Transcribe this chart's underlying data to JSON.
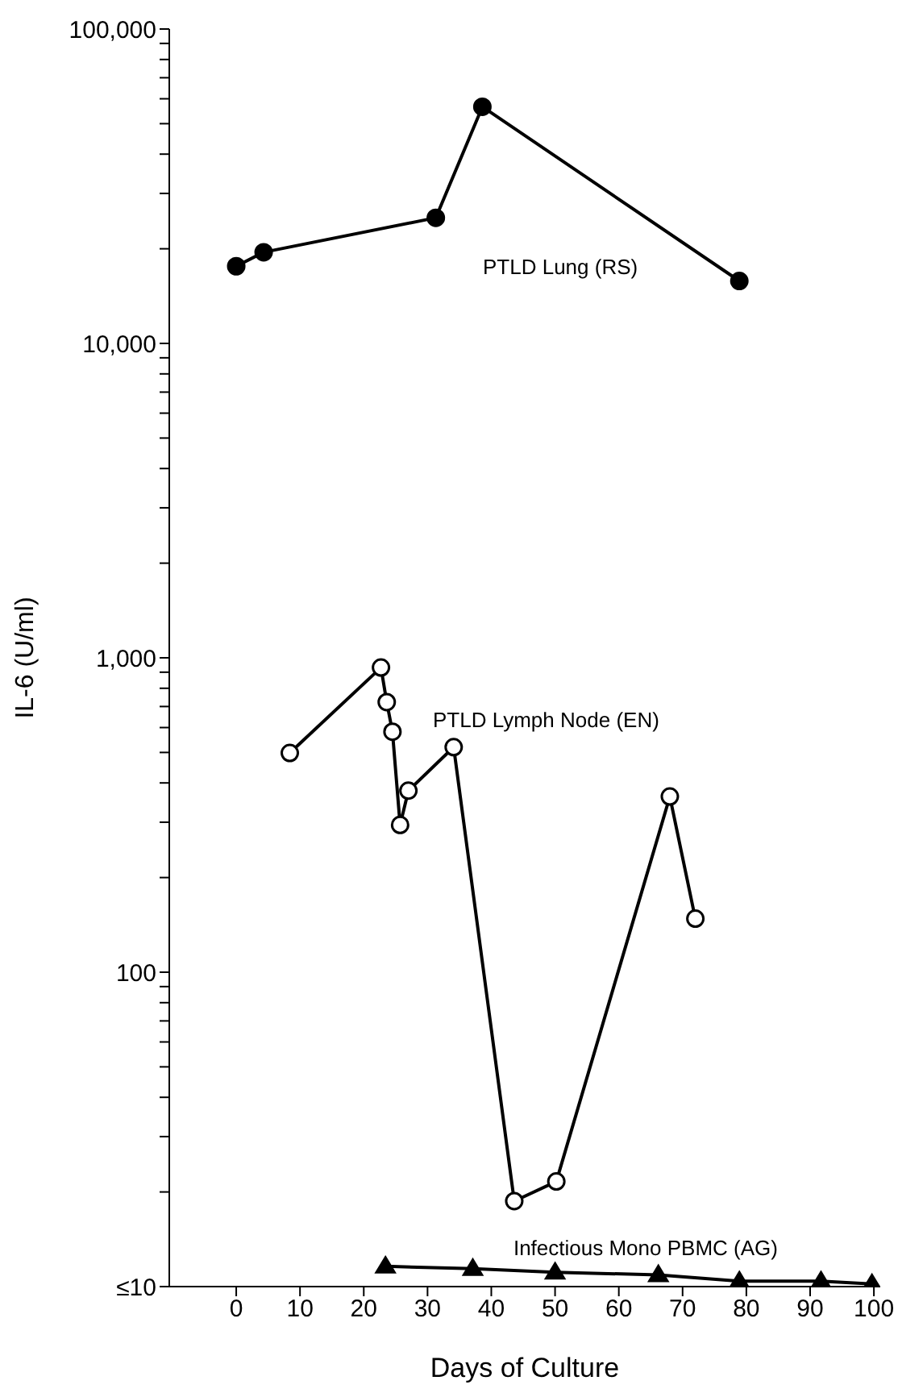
{
  "chart_data": {
    "type": "line",
    "xlabel": "Days of Culture",
    "ylabel": "IL-6 (U/ml)",
    "log": "y",
    "grid": false,
    "line_style": "solid",
    "xlim": [
      -10.5,
      101
    ],
    "xticks": [
      0,
      10,
      20,
      30,
      40,
      50,
      60,
      70,
      80,
      90,
      100
    ],
    "ylim": [
      10,
      100000
    ],
    "yticks": [
      {
        "value": 10,
        "label": "≤10"
      },
      {
        "value": 20,
        "label": null
      },
      {
        "value": 30,
        "label": null
      },
      {
        "value": 40,
        "label": null
      },
      {
        "value": 50,
        "label": null
      },
      {
        "value": 60,
        "label": null
      },
      {
        "value": 70,
        "label": null
      },
      {
        "value": 80,
        "label": null
      },
      {
        "value": 90,
        "label": null
      },
      100,
      {
        "value": 200,
        "label": null
      },
      {
        "value": 300,
        "label": null
      },
      {
        "value": 400,
        "label": null
      },
      {
        "value": 500,
        "label": null
      },
      {
        "value": 600,
        "label": null
      },
      {
        "value": 700,
        "label": null
      },
      {
        "value": 800,
        "label": null
      },
      {
        "value": 900,
        "label": null
      },
      {
        "value": 1000,
        "label": "1,000"
      },
      {
        "value": 2000,
        "label": null
      },
      {
        "value": 3000,
        "label": null
      },
      {
        "value": 4000,
        "label": null
      },
      {
        "value": 5000,
        "label": null
      },
      {
        "value": 6000,
        "label": null
      },
      {
        "value": 7000,
        "label": null
      },
      {
        "value": 8000,
        "label": null
      },
      {
        "value": 9000,
        "label": null
      },
      {
        "value": 10000,
        "label": "10,000"
      },
      {
        "value": 20000,
        "label": null
      },
      {
        "value": 30000,
        "label": null
      },
      {
        "value": 40000,
        "label": null
      },
      {
        "value": 50000,
        "label": null
      },
      {
        "value": 60000,
        "label": null
      },
      {
        "value": 70000,
        "label": null
      },
      {
        "value": 80000,
        "label": null
      },
      {
        "value": 90000,
        "label": null
      },
      {
        "value": 100000,
        "label": "100,000"
      }
    ],
    "series": [
      {
        "name": "PTLD Lung (RS)",
        "color": "#000000",
        "marker": "circle",
        "x": [
          0,
          4.3,
          31.3,
          38.6,
          78.9
        ],
        "values": [
          17600,
          19500,
          25100,
          56600,
          15800
        ]
      },
      {
        "name": "PTLD Lymph Node (EN)",
        "color": "#000000",
        "marker": "circle",
        "x": [
          8.4,
          22.7,
          23.6,
          24.5,
          25.7,
          27.0,
          34.1,
          43.6,
          50.2,
          68.0,
          72.0
        ],
        "values": [
          498,
          931,
          723,
          582,
          294,
          378,
          520,
          18.7,
          21.6,
          362,
          148
        ]
      },
      {
        "name": "Infectious Mono PBMC (AG)",
        "color": "#000000",
        "marker": "triangle",
        "x": [
          23.4,
          37.1,
          50.0,
          66.2,
          78.9,
          91.7,
          99.7
        ],
        "values": [
          11.6,
          11.4,
          11.1,
          10.9,
          10.4,
          10.4,
          10.2
        ]
      }
    ]
  }
}
